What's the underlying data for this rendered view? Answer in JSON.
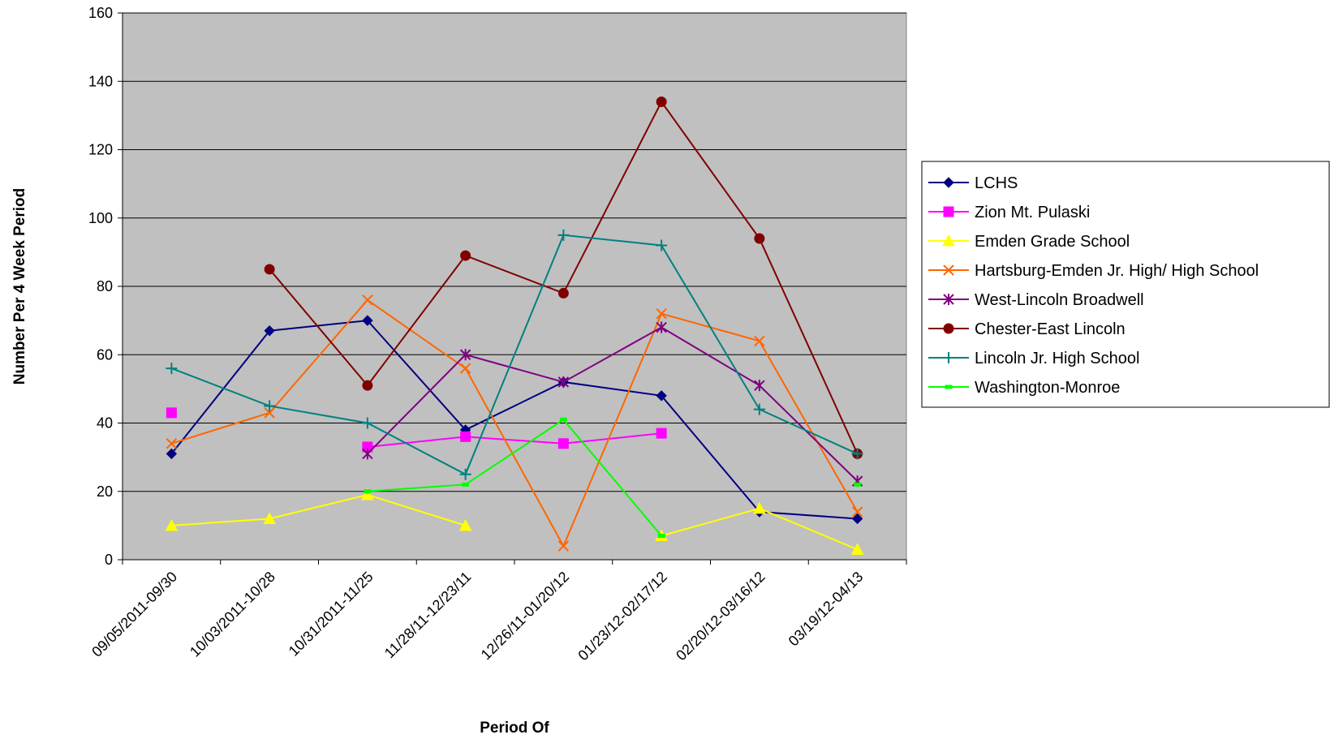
{
  "chart_data": {
    "type": "line",
    "title": "",
    "xlabel": "Period Of",
    "ylabel": "Number Per 4 Week Period",
    "ylim": [
      0,
      160
    ],
    "yticks": [
      0,
      20,
      40,
      60,
      80,
      100,
      120,
      140,
      160
    ],
    "grid": true,
    "legend_position": "right",
    "plot_background": "#c0c0c0",
    "categories": [
      "09/05/2011-09/30",
      "10/03/2011-10/28",
      "10/31/2011-11/25",
      "11/28/11-12/23/11",
      "12/26/11-01/20/12",
      "01/23/12-02/17/12",
      "02/20/12-03/16/12",
      "03/19/12-04/13"
    ],
    "series": [
      {
        "name": "LCHS",
        "color": "#000080",
        "marker": "diamond",
        "values": [
          31,
          67,
          70,
          38,
          52,
          48,
          14,
          12
        ]
      },
      {
        "name": "Zion Mt. Pulaski",
        "color": "#ff00ff",
        "marker": "square",
        "values": [
          43,
          null,
          33,
          36,
          34,
          37,
          null,
          null
        ]
      },
      {
        "name": "Emden Grade School",
        "color": "#ffff00",
        "marker": "triangle",
        "values": [
          10,
          12,
          19,
          10,
          null,
          7,
          15,
          3
        ]
      },
      {
        "name": "Hartsburg-Emden Jr. High/ High School",
        "color": "#ff6600",
        "marker": "x",
        "values": [
          34,
          43,
          76,
          56,
          4,
          72,
          64,
          14
        ]
      },
      {
        "name": "West-Lincoln Broadwell",
        "color": "#800080",
        "marker": "star",
        "values": [
          null,
          null,
          31,
          60,
          52,
          68,
          51,
          23
        ]
      },
      {
        "name": "Chester-East Lincoln",
        "color": "#800000",
        "marker": "circle",
        "values": [
          null,
          85,
          51,
          89,
          78,
          134,
          94,
          31
        ]
      },
      {
        "name": "Lincoln Jr. High School",
        "color": "#008080",
        "marker": "plus",
        "values": [
          56,
          45,
          40,
          25,
          95,
          92,
          44,
          31
        ]
      },
      {
        "name": "Washington-Monroe",
        "color": "#00ff00",
        "marker": "dash",
        "values": [
          null,
          null,
          20,
          22,
          41,
          7,
          null,
          22
        ]
      }
    ]
  }
}
